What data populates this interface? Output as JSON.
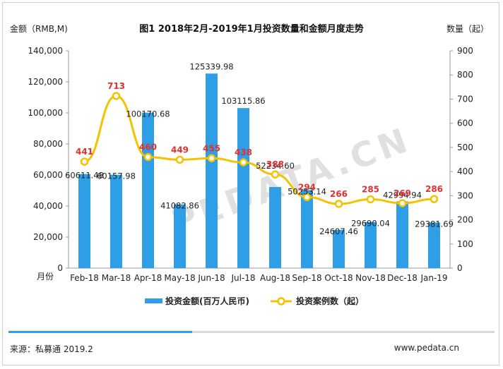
{
  "chart_data": {
    "type": "bar+line",
    "title": "图1 2018年2月-2019年1月投资数量和金额月度走势",
    "xlabel": "月份",
    "ylabel_left": "金额（RMB,M)",
    "ylabel_right": "数量（起）",
    "ylim_left": [
      0,
      140000
    ],
    "ylim_right": [
      0,
      900
    ],
    "yticks_left": [
      "0",
      "20,000",
      "40,000",
      "60,000",
      "80,000",
      "100,000",
      "120,000",
      "140,000"
    ],
    "yticks_right": [
      "0",
      "100",
      "200",
      "300",
      "400",
      "500",
      "600",
      "700",
      "800",
      "900"
    ],
    "categories": [
      "Feb-18",
      "Mar-18",
      "Apr-18",
      "May-18",
      "Jun-18",
      "Jul-18",
      "Aug-18",
      "Sep-18",
      "Oct-18",
      "Nov-18",
      "Dec-18",
      "Jan-19"
    ],
    "series": [
      {
        "name": "投资金额(百万人民币)",
        "type": "bar",
        "axis": "left",
        "values": [
          60611.48,
          60157.98,
          100170.68,
          41082.86,
          125339.98,
          103115.86,
          52234.6,
          50253.14,
          24607.46,
          29690.04,
          42994.94,
          29381.69
        ],
        "labels": [
          "60611.48",
          "60157.98",
          "100170.68",
          "41082.86",
          "125339.98",
          "103115.86",
          "52234.60",
          "50253.14",
          "24607.46",
          "29690.04",
          "42994.94",
          "29381.69"
        ]
      },
      {
        "name": "投资案例数（起）",
        "type": "line",
        "axis": "right",
        "values": [
          441,
          713,
          460,
          449,
          455,
          438,
          388,
          294,
          266,
          285,
          269,
          286
        ],
        "labels": [
          "441",
          "713",
          "460",
          "449",
          "455",
          "438",
          "388",
          "294",
          "266",
          "285",
          "269",
          "286"
        ]
      }
    ],
    "colors": {
      "bar": "#2e9fe6",
      "line": "#f5c200",
      "line_label": "#e03030",
      "axis_text": "#222222"
    },
    "grid": false,
    "legend_position": "bottom"
  },
  "watermark": "PEDATA.CN",
  "footer": {
    "source": "来源：私募通 2019.2",
    "url": "www.pedata.cn"
  }
}
